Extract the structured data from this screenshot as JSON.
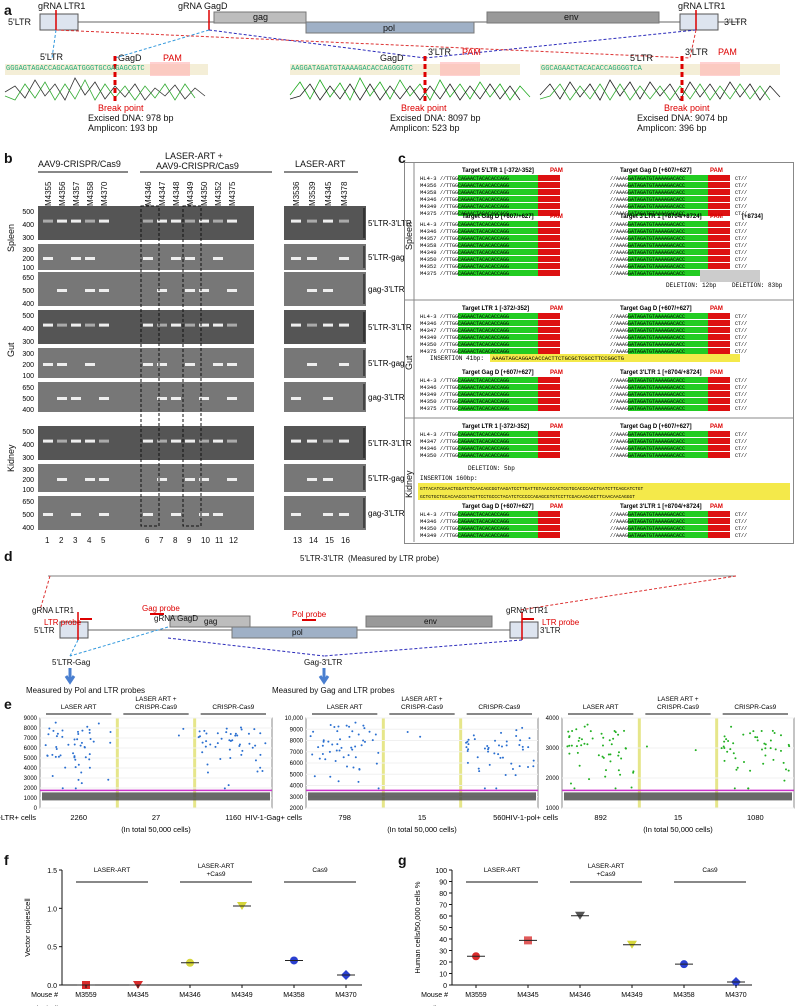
{
  "panel_labels": {
    "a": "a",
    "b": "b",
    "c": "c",
    "d": "d",
    "e": "e",
    "f": "f",
    "g": "g"
  },
  "panel_a": {
    "ltr5": "5'LTR",
    "ltr3": "3'LTR",
    "gag": "gag",
    "pol": "pol",
    "env": "env",
    "grna_ltr1_left": "gRNA  LTR1",
    "grna_gagd": "gRNA  GagD",
    "grna_ltr1_right": "gRNA  LTR1",
    "chrom1": {
      "left": "5'LTR",
      "mid": "GagD",
      "pam": "PAM",
      "seq": "GGGAGTAGACCAGCAGATGGGTGCGAGAGCGTC",
      "bp": "Break point",
      "excised": "Excised DNA: 978 bp",
      "amplicon": "Amplicon: 193 bp"
    },
    "chrom2": {
      "left": "GagD",
      "mid": "3'LTR",
      "pam": "PAM",
      "seq": "AAGGATAGATGTAAAAGACACCAGGGGTC",
      "bp": "Break point",
      "excised": "Excised DNA: 8097 bp",
      "amplicon": "Amplicon: 523 bp"
    },
    "chrom3": {
      "left": "5'LTR",
      "mid": "3'LTR",
      "pam": "PAM",
      "seq": "GGCAGAACTACACACCAGGGGTCA",
      "bp": "Break point",
      "excised": "Excised DNA: 9074 bp",
      "amplicon": "Amplicon: 396 bp"
    }
  },
  "panel_b": {
    "group1": "AAV9-CRISPR/Cas9",
    "group2": "LASER-ART +",
    "group2b": "AAV9-CRISPR/Cas9",
    "group3": "LASER-ART",
    "lanes1": [
      "M4355",
      "M4356",
      "M4357",
      "M4358",
      "M4370"
    ],
    "lanes2": [
      "M4346",
      "M4347",
      "M4348",
      "M4349",
      "M4350",
      "M4352",
      "M4375"
    ],
    "lanes3": [
      "M3536",
      "M3539",
      "M4345",
      "M4378"
    ],
    "tissues": [
      "Spleen",
      "Gut",
      "Kidney"
    ],
    "rows": [
      "5'LTR-3'LTR",
      "5'LTR-gag",
      "gag-3'LTR"
    ],
    "ladder_row1": [
      "500",
      "400",
      "300"
    ],
    "ladder_row2": [
      "300",
      "200",
      "100"
    ],
    "ladder_row3": [
      "650",
      "500",
      "400"
    ],
    "lane_numbers": [
      "1",
      "2",
      "3",
      "4",
      "5",
      "6",
      "7",
      "8",
      "9",
      "10",
      "11",
      "12",
      "13",
      "14",
      "15",
      "16"
    ]
  },
  "panel_c": {
    "tissues": [
      "Spleen",
      "Gut",
      "Kidney"
    ],
    "t1": "Target 5'LTR 1 [-372/-352]",
    "t2": "Target Gag D [+607/+627]",
    "t3": "Target 3'LTR 1 [+8704/+8724]",
    "t1b": "Target LTR 1 [-372/-352]",
    "pam": "PAM",
    "pos": "[+8734]",
    "del12": "DELETION: 12bp",
    "del83": "DELETION: 83bp",
    "del5": "DELETION: 5bp",
    "ins41": "INSERTION 41bp:",
    "ins160": "INSERTION 160bp:",
    "ins41seq": "AAAGTAGCAGGACACCACTTCTGCGCTCGCCTTCCGGCTG",
    "ins160seq1": "GTTACATCGAACTGGATCTCAACAGCGGTAAGATCCTTGATTGTAACCCACTCGTGCACCCAACTGATCTTCAGCATCTGT",
    "ins160seq2": "GCTGTGCTGCACAACCGTAGTTCCTGCCCTACATCTCCCCCAGAGCGTGTCCTTCGACAACAGCTTCAACAACAGGGT",
    "spleen_a_ids": [
      "HL4-3",
      "M4356",
      "M4358",
      "M4346",
      "M4349",
      "M4375"
    ],
    "spleen_b_ids": [
      "HL4-3",
      "M4346",
      "M4357",
      "M4358",
      "M4349",
      "M4350",
      "M4352",
      "M4375"
    ],
    "gut_a_ids": [
      "HL4-3",
      "M4346",
      "M4347",
      "M4349",
      "M4350",
      "M4375"
    ],
    "gut_b_ids": [
      "HL4-3",
      "M4346",
      "M4349",
      "M4350",
      "M4375"
    ],
    "kid_a_ids": [
      "HL4-3",
      "M4347",
      "M4346",
      "M4350"
    ],
    "kid_b_ids": [
      "HL4-3",
      "M4346",
      "M4350",
      "M4349"
    ],
    "seq_left": "//TTGGCAGAACTACACACCAGG",
    "seq_gag": "//AAAGGATAGATGTAAAAGACACC",
    "seq_tail": "ATATCC//AATAAAGGA",
    "seq_end": "CT//"
  },
  "panel_d": {
    "top": "5'LTR-3'LTR",
    "top_note": "(Measured by LTR probe)",
    "grna_ltr1_left": "gRNA LTR1",
    "grna_gagd": "gRNA GagD",
    "grna_ltr1_right": "gRNA LTR1",
    "gag_probe": "Gag probe",
    "ltr_probe_left": "LTR probe",
    "pol_probe": "Pol probe",
    "ltr_probe_right": "LTR probe",
    "ltr5": "5'LTR",
    "ltr3": "3'LTR",
    "gag": "gag",
    "pol": "pol",
    "env": "env",
    "frag1": "5'LTR-Gag",
    "frag1_note": "Measured by Pol and LTR probes",
    "frag2": "Gag-3'LTR",
    "frag2_note": "Measured by Gag and LTR probes"
  },
  "panel_e": {
    "groups": [
      "LASER ART",
      "LASER ART +\nCRISPR-Cas9",
      "CRISPR-Cas9"
    ],
    "plots": [
      {
        "label": "HIV-1-LTR+ cells",
        "counts": [
          "2260",
          "27",
          "1160"
        ],
        "yticks": [
          "9000",
          "8000",
          "7000",
          "6000",
          "5000",
          "4000",
          "3000",
          "2000",
          "1000",
          "0"
        ],
        "color": "#2a6fd0"
      },
      {
        "label": "HIV-1-Gag+ cells",
        "counts": [
          "798",
          "15",
          "560"
        ],
        "yticks": [
          "10,000",
          "9000",
          "8000",
          "7000",
          "6000",
          "5000",
          "4000",
          "3000",
          "2000"
        ],
        "color": "#2a6fd0"
      },
      {
        "label": "HIV-1-pol+ cells",
        "counts": [
          "892",
          "15",
          "1080"
        ],
        "yticks": [
          "4000",
          "3000",
          "2000",
          "1000"
        ],
        "color": "#22b022"
      }
    ],
    "total": "(In total 50,000 cells)"
  },
  "chart_data": [
    {
      "type": "scatter",
      "title": "",
      "ylabel": "Vector copies/cell",
      "xlabel": "Mouse #",
      "ylim": [
        0,
        1.5
      ],
      "yticks": [
        "0.0",
        "0.5",
        "1.0",
        "1.5"
      ],
      "groups": [
        "LASER-ART",
        "LASER-ART\n+Cas9",
        "Cas9"
      ],
      "categories": [
        "M3559",
        "M4345",
        "M4346",
        "M4349",
        "M4358",
        "M4370"
      ],
      "values": [
        0.0,
        0.0,
        0.29,
        1.03,
        0.32,
        0.13
      ],
      "colors": [
        "#d92b2b",
        "#d92b2b",
        "#d6d63a",
        "#d6d63a",
        "#2a3fd0",
        "#2a3fd0"
      ],
      "markers": [
        "square",
        "triangle",
        "circle",
        "triangle",
        "circle",
        "diamond"
      ],
      "row_label": "Vector copies/cell",
      "row_values": [
        "–",
        "–",
        "0.29",
        "1.03",
        "0.32",
        "0.13"
      ]
    },
    {
      "type": "scatter",
      "title": "",
      "ylabel": "Human cells/50,000 cells %",
      "xlabel": "Mouse #",
      "ylim": [
        0,
        100
      ],
      "yticks": [
        "0",
        "10",
        "20",
        "30",
        "40",
        "50",
        "60",
        "70",
        "80",
        "90",
        "100"
      ],
      "groups": [
        "LASER-ART",
        "LASER-ART\n+Cas9",
        "Cas9"
      ],
      "categories": [
        "M3559",
        "M4345",
        "M4346",
        "M4349",
        "M4358",
        "M4370"
      ],
      "values": [
        25.0,
        38.8,
        60.2,
        35.0,
        18.1,
        2.6
      ],
      "colors": [
        "#d92b2b",
        "#e05a5a",
        "#555555",
        "#d6d63a",
        "#2a3fd0",
        "#2a3fd0"
      ],
      "markers": [
        "circle",
        "square",
        "triangle",
        "triangle",
        "circle",
        "diamond"
      ],
      "row_label": "Human cells %",
      "row_values": [
        "25.0",
        "38.8",
        "60.2",
        "35.0",
        "18.1",
        "2.6"
      ]
    }
  ]
}
